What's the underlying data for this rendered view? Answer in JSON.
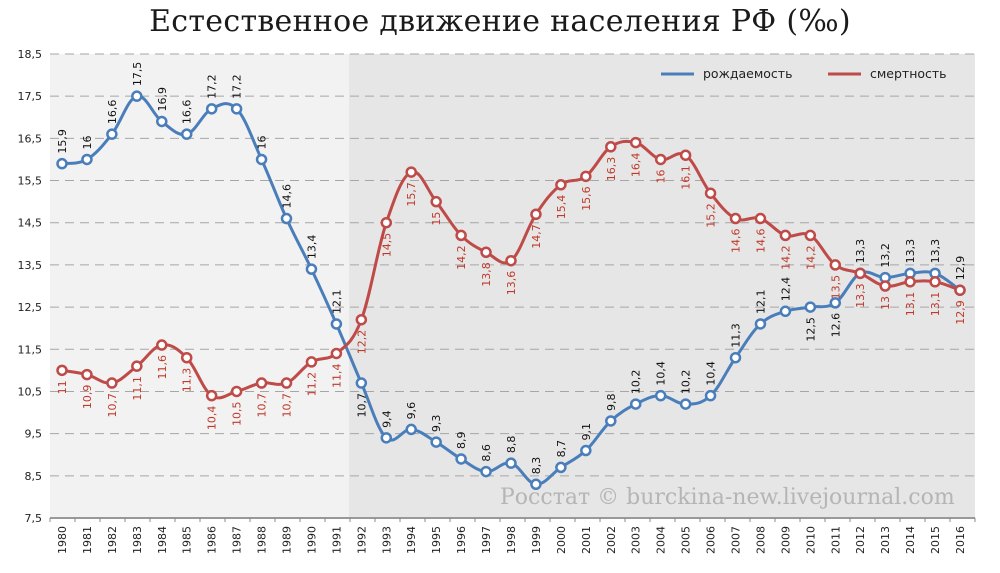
{
  "title": "Естественное движение населения РФ (‰)",
  "watermark": "Росстат © burckina-new.livejournal.com",
  "colors": {
    "birth": "#4a7ebb",
    "death": "#be4b48",
    "bg_left": "#f2f2f2",
    "bg_right": "#e6e6e6",
    "grid": "#a6a6a6"
  },
  "legend": [
    {
      "label": "рождаемость",
      "color": "#4a7ebb"
    },
    {
      "label": "смертность",
      "color": "#be4b48"
    }
  ],
  "chart_data": {
    "type": "line",
    "title": "Естественное движение населения РФ (‰)",
    "xlabel": "",
    "ylabel": "",
    "ylim": [
      7.5,
      18.5
    ],
    "yticks": [
      "7,5",
      "8,5",
      "9,5",
      "10,5",
      "11,5",
      "12,5",
      "13,5",
      "14,5",
      "15,5",
      "16,5",
      "17,5",
      "18,5"
    ],
    "grid": true,
    "legend_position": "top-right",
    "shaded_region_from": "1992",
    "x": [
      1980,
      1981,
      1982,
      1983,
      1984,
      1985,
      1986,
      1987,
      1988,
      1989,
      1990,
      1991,
      1992,
      1993,
      1994,
      1995,
      1996,
      1997,
      1998,
      1999,
      2000,
      2001,
      2002,
      2003,
      2004,
      2005,
      2006,
      2007,
      2008,
      2009,
      2010,
      2011,
      2012,
      2013,
      2014,
      2015,
      2016
    ],
    "series": [
      {
        "name": "рождаемость",
        "values": [
          15.9,
          16,
          16.6,
          17.5,
          16.9,
          16.6,
          17.2,
          17.2,
          16,
          14.6,
          13.4,
          12.1,
          10.7,
          9.4,
          9.6,
          9.3,
          8.9,
          8.6,
          8.8,
          8.3,
          8.7,
          9.1,
          9.8,
          10.2,
          10.4,
          10.2,
          10.4,
          11.3,
          12.1,
          12.4,
          12.5,
          12.6,
          13.3,
          13.2,
          13.3,
          13.3,
          12.9
        ],
        "labels": [
          "15,9",
          "16",
          "16,6",
          "17,5",
          "16,9",
          "16,6",
          "17,2",
          "17,2",
          "16",
          "14,6",
          "13,4",
          "12,1",
          "10,7",
          "9,4",
          "9,6",
          "9,3",
          "8,9",
          "8,6",
          "8,8",
          "8,3",
          "8,7",
          "9,1",
          "9,8",
          "10,2",
          "10,4",
          "10,2",
          "10,4",
          "11,3",
          "12,1",
          "12,4",
          "12,5",
          "12,6",
          "13,3",
          "13,2",
          "13,3",
          "13,3",
          "12,9"
        ]
      },
      {
        "name": "смертность",
        "values": [
          11,
          10.9,
          10.7,
          11.1,
          11.6,
          11.3,
          10.4,
          10.5,
          10.7,
          10.7,
          11.2,
          11.4,
          12.2,
          14.5,
          15.7,
          15,
          14.2,
          13.8,
          13.6,
          14.7,
          15.4,
          15.6,
          16.3,
          16.4,
          16,
          16.1,
          15.2,
          14.6,
          14.6,
          14.2,
          14.2,
          13.5,
          13.3,
          13,
          13.1,
          13.1,
          12.9
        ],
        "labels": [
          "11",
          "10,9",
          "10,7",
          "11,1",
          "11,6",
          "11,3",
          "10,4",
          "10,5",
          "10,7",
          "10,7",
          "11,2",
          "11,4",
          "12,2",
          "14,5",
          "15,7",
          "15",
          "14,2",
          "13,8",
          "13,6",
          "14,7",
          "15,4",
          "15,6",
          "16,3",
          "16,4",
          "16",
          "16,1",
          "15,2",
          "14,6",
          "14,6",
          "14,2",
          "14,2",
          "13,5",
          "13,3",
          "13",
          "13,1",
          "13,1",
          "12,9"
        ]
      }
    ]
  }
}
